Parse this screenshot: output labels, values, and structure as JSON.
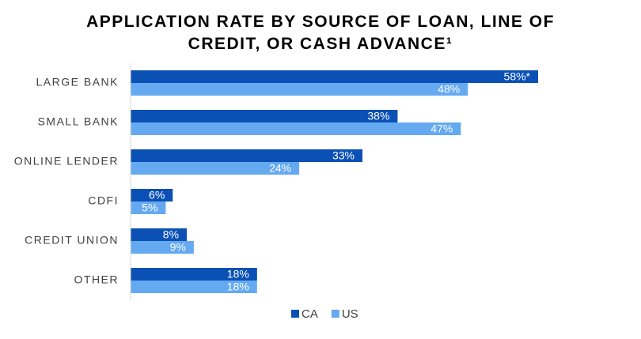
{
  "chart_data": {
    "type": "hbar",
    "title": "APPLICATION RATE BY SOURCE OF LOAN, LINE OF CREDIT, OR CASH ADVANCE¹",
    "categories": [
      "LARGE BANK",
      "SMALL BANK",
      "ONLINE LENDER",
      "CDFI",
      "CREDIT UNION",
      "OTHER"
    ],
    "series": [
      {
        "name": "CA",
        "color": "#0b50b5",
        "values": [
          58,
          38,
          33,
          6,
          8,
          18
        ],
        "value_labels": [
          "58%*",
          "38%",
          "33%",
          "6%",
          "8%",
          "18%"
        ]
      },
      {
        "name": "US",
        "color": "#65a9f1",
        "values": [
          48,
          47,
          24,
          5,
          9,
          18
        ],
        "value_labels": [
          "48%",
          "47%",
          "24%",
          "5%",
          "9%",
          "18%"
        ]
      }
    ],
    "legend": "bottom"
  }
}
